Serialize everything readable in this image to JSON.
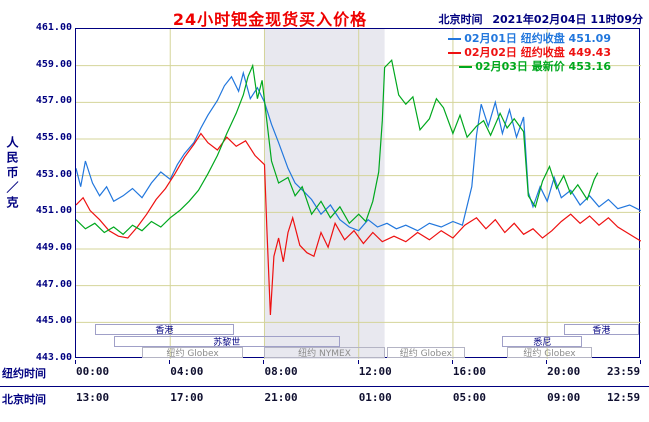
{
  "header": {
    "title": "24小时钯金现货买入价格",
    "time_label": "北京时间",
    "time_value": "2021年02月04日 11时09分"
  },
  "y_axis": {
    "unit_label": "人民币／克",
    "ticks": [
      "461.00",
      "459.00",
      "457.00",
      "455.00",
      "453.00",
      "451.00",
      "449.00",
      "447.00",
      "445.00",
      "443.00"
    ]
  },
  "x_axis": {
    "ny_row_label": "纽约时间",
    "bj_row_label": "北京时间",
    "tick_hours": [
      0,
      4,
      8,
      12,
      16,
      20,
      23.983
    ],
    "ny_ticks": [
      "00:00",
      "04:00",
      "08:00",
      "12:00",
      "16:00",
      "20:00",
      "23:59"
    ],
    "bj_ticks": [
      "13:00",
      "17:00",
      "21:00",
      "01:00",
      "05:00",
      "09:00",
      "12:59"
    ]
  },
  "legend": [
    {
      "date": "02月01日",
      "desc": "纽约收盘",
      "value": "451.09",
      "color": "#2277dd"
    },
    {
      "date": "02月02日",
      "desc": "纽约收盘",
      "value": "449.43",
      "color": "#ee1111"
    },
    {
      "date": "02月03日",
      "desc": "最新价",
      "value": "453.16",
      "color": "#00a81e"
    }
  ],
  "sessions": [
    {
      "label": "香港",
      "row": 0,
      "start": 0.8,
      "end": 6.7,
      "muted": false
    },
    {
      "label": "香港",
      "row": 0,
      "start": 20.7,
      "end": 23.9,
      "muted": false
    },
    {
      "label": "苏黎世",
      "row": 1,
      "start": 1.6,
      "end": 11.2,
      "muted": false
    },
    {
      "label": "悉尼",
      "row": 1,
      "start": 18.1,
      "end": 21.5,
      "muted": false
    },
    {
      "label": "纽约 Globex",
      "row": 2,
      "start": 2.8,
      "end": 7.1,
      "muted": true
    },
    {
      "label": "纽约 NYMEX",
      "row": 2,
      "start": 8.0,
      "end": 13.1,
      "muted": true
    },
    {
      "label": "纽约 Globex",
      "row": 2,
      "start": 13.2,
      "end": 16.5,
      "muted": true
    },
    {
      "label": "纽约 Globex",
      "row": 2,
      "start": 18.3,
      "end": 21.9,
      "muted": true
    }
  ],
  "colors": {
    "title": "#ee0000",
    "axis_text": "#000080",
    "grid": "#d4d49a",
    "border": "#000080",
    "band": "#e8e8ef",
    "muted_text": "#8c8c8c"
  },
  "chart_data": {
    "type": "line",
    "title": "24小时钯金现货买入价格",
    "ylabel": "人民币／克",
    "ylim": [
      443,
      461
    ],
    "x_range_hours": [
      0,
      23.983
    ],
    "x_axis_top": "纽约时间 00:00-23:59",
    "x_axis_bottom": "北京时间 13:00-12:59",
    "grid": true,
    "legend_position": "top-right",
    "highlight_band_hours": [
      8.0,
      13.1
    ],
    "series": [
      {
        "name": "02月01日 纽约收盘 451.09",
        "color": "#2277dd",
        "points": [
          [
            0,
            453.4
          ],
          [
            0.2,
            452.4
          ],
          [
            0.4,
            453.8
          ],
          [
            0.7,
            452.6
          ],
          [
            1,
            451.9
          ],
          [
            1.3,
            452.4
          ],
          [
            1.6,
            451.6
          ],
          [
            2,
            451.9
          ],
          [
            2.4,
            452.3
          ],
          [
            2.8,
            451.8
          ],
          [
            3.2,
            452.6
          ],
          [
            3.6,
            453.2
          ],
          [
            4,
            452.8
          ],
          [
            4.3,
            453.6
          ],
          [
            4.6,
            454.2
          ],
          [
            5,
            454.8
          ],
          [
            5.3,
            455.6
          ],
          [
            5.6,
            456.3
          ],
          [
            6,
            457.1
          ],
          [
            6.3,
            457.9
          ],
          [
            6.6,
            458.4
          ],
          [
            6.9,
            457.6
          ],
          [
            7.1,
            458.6
          ],
          [
            7.4,
            457.2
          ],
          [
            7.7,
            457.8
          ],
          [
            8,
            457.0
          ],
          [
            8.3,
            455.8
          ],
          [
            8.6,
            454.8
          ],
          [
            9,
            453.4
          ],
          [
            9.3,
            452.6
          ],
          [
            9.7,
            452.1
          ],
          [
            10,
            451.7
          ],
          [
            10.4,
            450.9
          ],
          [
            10.8,
            451.4
          ],
          [
            11.2,
            450.6
          ],
          [
            11.6,
            450.2
          ],
          [
            12,
            450.0
          ],
          [
            12.4,
            450.6
          ],
          [
            12.8,
            450.2
          ],
          [
            13.2,
            450.4
          ],
          [
            13.6,
            450.1
          ],
          [
            14,
            450.3
          ],
          [
            14.5,
            450.0
          ],
          [
            15,
            450.4
          ],
          [
            15.5,
            450.2
          ],
          [
            16,
            450.5
          ],
          [
            16.4,
            450.3
          ],
          [
            16.8,
            452.4
          ],
          [
            17,
            455.2
          ],
          [
            17.2,
            456.9
          ],
          [
            17.5,
            455.7
          ],
          [
            17.8,
            457.0
          ],
          [
            18.1,
            455.3
          ],
          [
            18.4,
            456.6
          ],
          [
            18.7,
            455.1
          ],
          [
            19,
            456.2
          ],
          [
            19.2,
            452.1
          ],
          [
            19.4,
            451.3
          ],
          [
            19.7,
            452.4
          ],
          [
            20,
            451.6
          ],
          [
            20.3,
            452.9
          ],
          [
            20.6,
            451.8
          ],
          [
            21,
            452.2
          ],
          [
            21.4,
            451.4
          ],
          [
            21.8,
            451.9
          ],
          [
            22.2,
            451.3
          ],
          [
            22.6,
            451.7
          ],
          [
            23,
            451.2
          ],
          [
            23.5,
            451.4
          ],
          [
            23.98,
            451.09
          ]
        ]
      },
      {
        "name": "02月02日 纽约收盘 449.43",
        "color": "#ee1111",
        "points": [
          [
            0,
            451.4
          ],
          [
            0.3,
            451.8
          ],
          [
            0.6,
            451.1
          ],
          [
            1,
            450.6
          ],
          [
            1.4,
            450.0
          ],
          [
            1.8,
            449.7
          ],
          [
            2.2,
            449.6
          ],
          [
            2.6,
            450.2
          ],
          [
            3,
            450.9
          ],
          [
            3.4,
            451.7
          ],
          [
            3.8,
            452.3
          ],
          [
            4.2,
            453.1
          ],
          [
            4.6,
            454.0
          ],
          [
            5,
            454.7
          ],
          [
            5.3,
            455.3
          ],
          [
            5.6,
            454.8
          ],
          [
            6,
            454.4
          ],
          [
            6.4,
            455.1
          ],
          [
            6.8,
            454.6
          ],
          [
            7.2,
            454.9
          ],
          [
            7.6,
            454.1
          ],
          [
            8,
            453.6
          ],
          [
            8.1,
            450.2
          ],
          [
            8.25,
            445.4
          ],
          [
            8.4,
            448.6
          ],
          [
            8.6,
            449.6
          ],
          [
            8.8,
            448.3
          ],
          [
            9,
            449.9
          ],
          [
            9.2,
            450.7
          ],
          [
            9.5,
            449.2
          ],
          [
            9.8,
            448.8
          ],
          [
            10.1,
            448.6
          ],
          [
            10.4,
            449.9
          ],
          [
            10.7,
            449.1
          ],
          [
            11,
            450.4
          ],
          [
            11.4,
            449.5
          ],
          [
            11.8,
            450.0
          ],
          [
            12.2,
            449.3
          ],
          [
            12.6,
            449.9
          ],
          [
            13,
            449.4
          ],
          [
            13.5,
            449.7
          ],
          [
            14,
            449.4
          ],
          [
            14.5,
            449.9
          ],
          [
            15,
            449.5
          ],
          [
            15.5,
            450.0
          ],
          [
            16,
            449.6
          ],
          [
            16.5,
            450.3
          ],
          [
            17,
            450.7
          ],
          [
            17.4,
            450.1
          ],
          [
            17.8,
            450.6
          ],
          [
            18.2,
            449.9
          ],
          [
            18.6,
            450.4
          ],
          [
            19,
            449.8
          ],
          [
            19.4,
            450.1
          ],
          [
            19.8,
            449.6
          ],
          [
            20.2,
            450.0
          ],
          [
            20.6,
            450.5
          ],
          [
            21,
            450.9
          ],
          [
            21.4,
            450.4
          ],
          [
            21.8,
            450.8
          ],
          [
            22.2,
            450.3
          ],
          [
            22.6,
            450.7
          ],
          [
            23,
            450.2
          ],
          [
            23.5,
            449.8
          ],
          [
            23.98,
            449.43
          ]
        ]
      },
      {
        "name": "02月03日 最新价 453.16",
        "color": "#00a81e",
        "points": [
          [
            0,
            450.6
          ],
          [
            0.4,
            450.1
          ],
          [
            0.8,
            450.4
          ],
          [
            1.2,
            449.9
          ],
          [
            1.6,
            450.2
          ],
          [
            2,
            449.8
          ],
          [
            2.4,
            450.3
          ],
          [
            2.8,
            450.0
          ],
          [
            3.2,
            450.5
          ],
          [
            3.6,
            450.2
          ],
          [
            4,
            450.7
          ],
          [
            4.4,
            451.1
          ],
          [
            4.8,
            451.6
          ],
          [
            5.2,
            452.2
          ],
          [
            5.6,
            453.1
          ],
          [
            6,
            454.1
          ],
          [
            6.4,
            455.3
          ],
          [
            6.8,
            456.4
          ],
          [
            7.1,
            457.4
          ],
          [
            7.3,
            458.4
          ],
          [
            7.5,
            459.0
          ],
          [
            7.7,
            457.2
          ],
          [
            7.9,
            458.2
          ],
          [
            8.1,
            456.0
          ],
          [
            8.3,
            453.8
          ],
          [
            8.6,
            452.6
          ],
          [
            9,
            452.9
          ],
          [
            9.3,
            451.9
          ],
          [
            9.6,
            452.4
          ],
          [
            10,
            450.9
          ],
          [
            10.4,
            451.6
          ],
          [
            10.8,
            450.7
          ],
          [
            11.2,
            451.3
          ],
          [
            11.6,
            450.4
          ],
          [
            12,
            450.9
          ],
          [
            12.3,
            450.5
          ],
          [
            12.6,
            451.6
          ],
          [
            12.85,
            453.2
          ],
          [
            13,
            456.0
          ],
          [
            13.1,
            458.9
          ],
          [
            13.4,
            459.3
          ],
          [
            13.7,
            457.4
          ],
          [
            14,
            456.9
          ],
          [
            14.3,
            457.3
          ],
          [
            14.6,
            455.5
          ],
          [
            15,
            456.1
          ],
          [
            15.3,
            457.2
          ],
          [
            15.6,
            456.7
          ],
          [
            16,
            455.3
          ],
          [
            16.3,
            456.3
          ],
          [
            16.6,
            455.1
          ],
          [
            17,
            455.7
          ],
          [
            17.3,
            456.0
          ],
          [
            17.6,
            455.2
          ],
          [
            18,
            456.4
          ],
          [
            18.3,
            455.6
          ],
          [
            18.6,
            456.1
          ],
          [
            19,
            455.4
          ],
          [
            19.2,
            451.9
          ],
          [
            19.5,
            451.3
          ],
          [
            19.8,
            452.7
          ],
          [
            20.1,
            453.5
          ],
          [
            20.4,
            452.3
          ],
          [
            20.7,
            453.0
          ],
          [
            21,
            452.0
          ],
          [
            21.3,
            452.5
          ],
          [
            21.7,
            451.7
          ],
          [
            22,
            452.8
          ],
          [
            22.15,
            453.16
          ]
        ]
      }
    ]
  }
}
